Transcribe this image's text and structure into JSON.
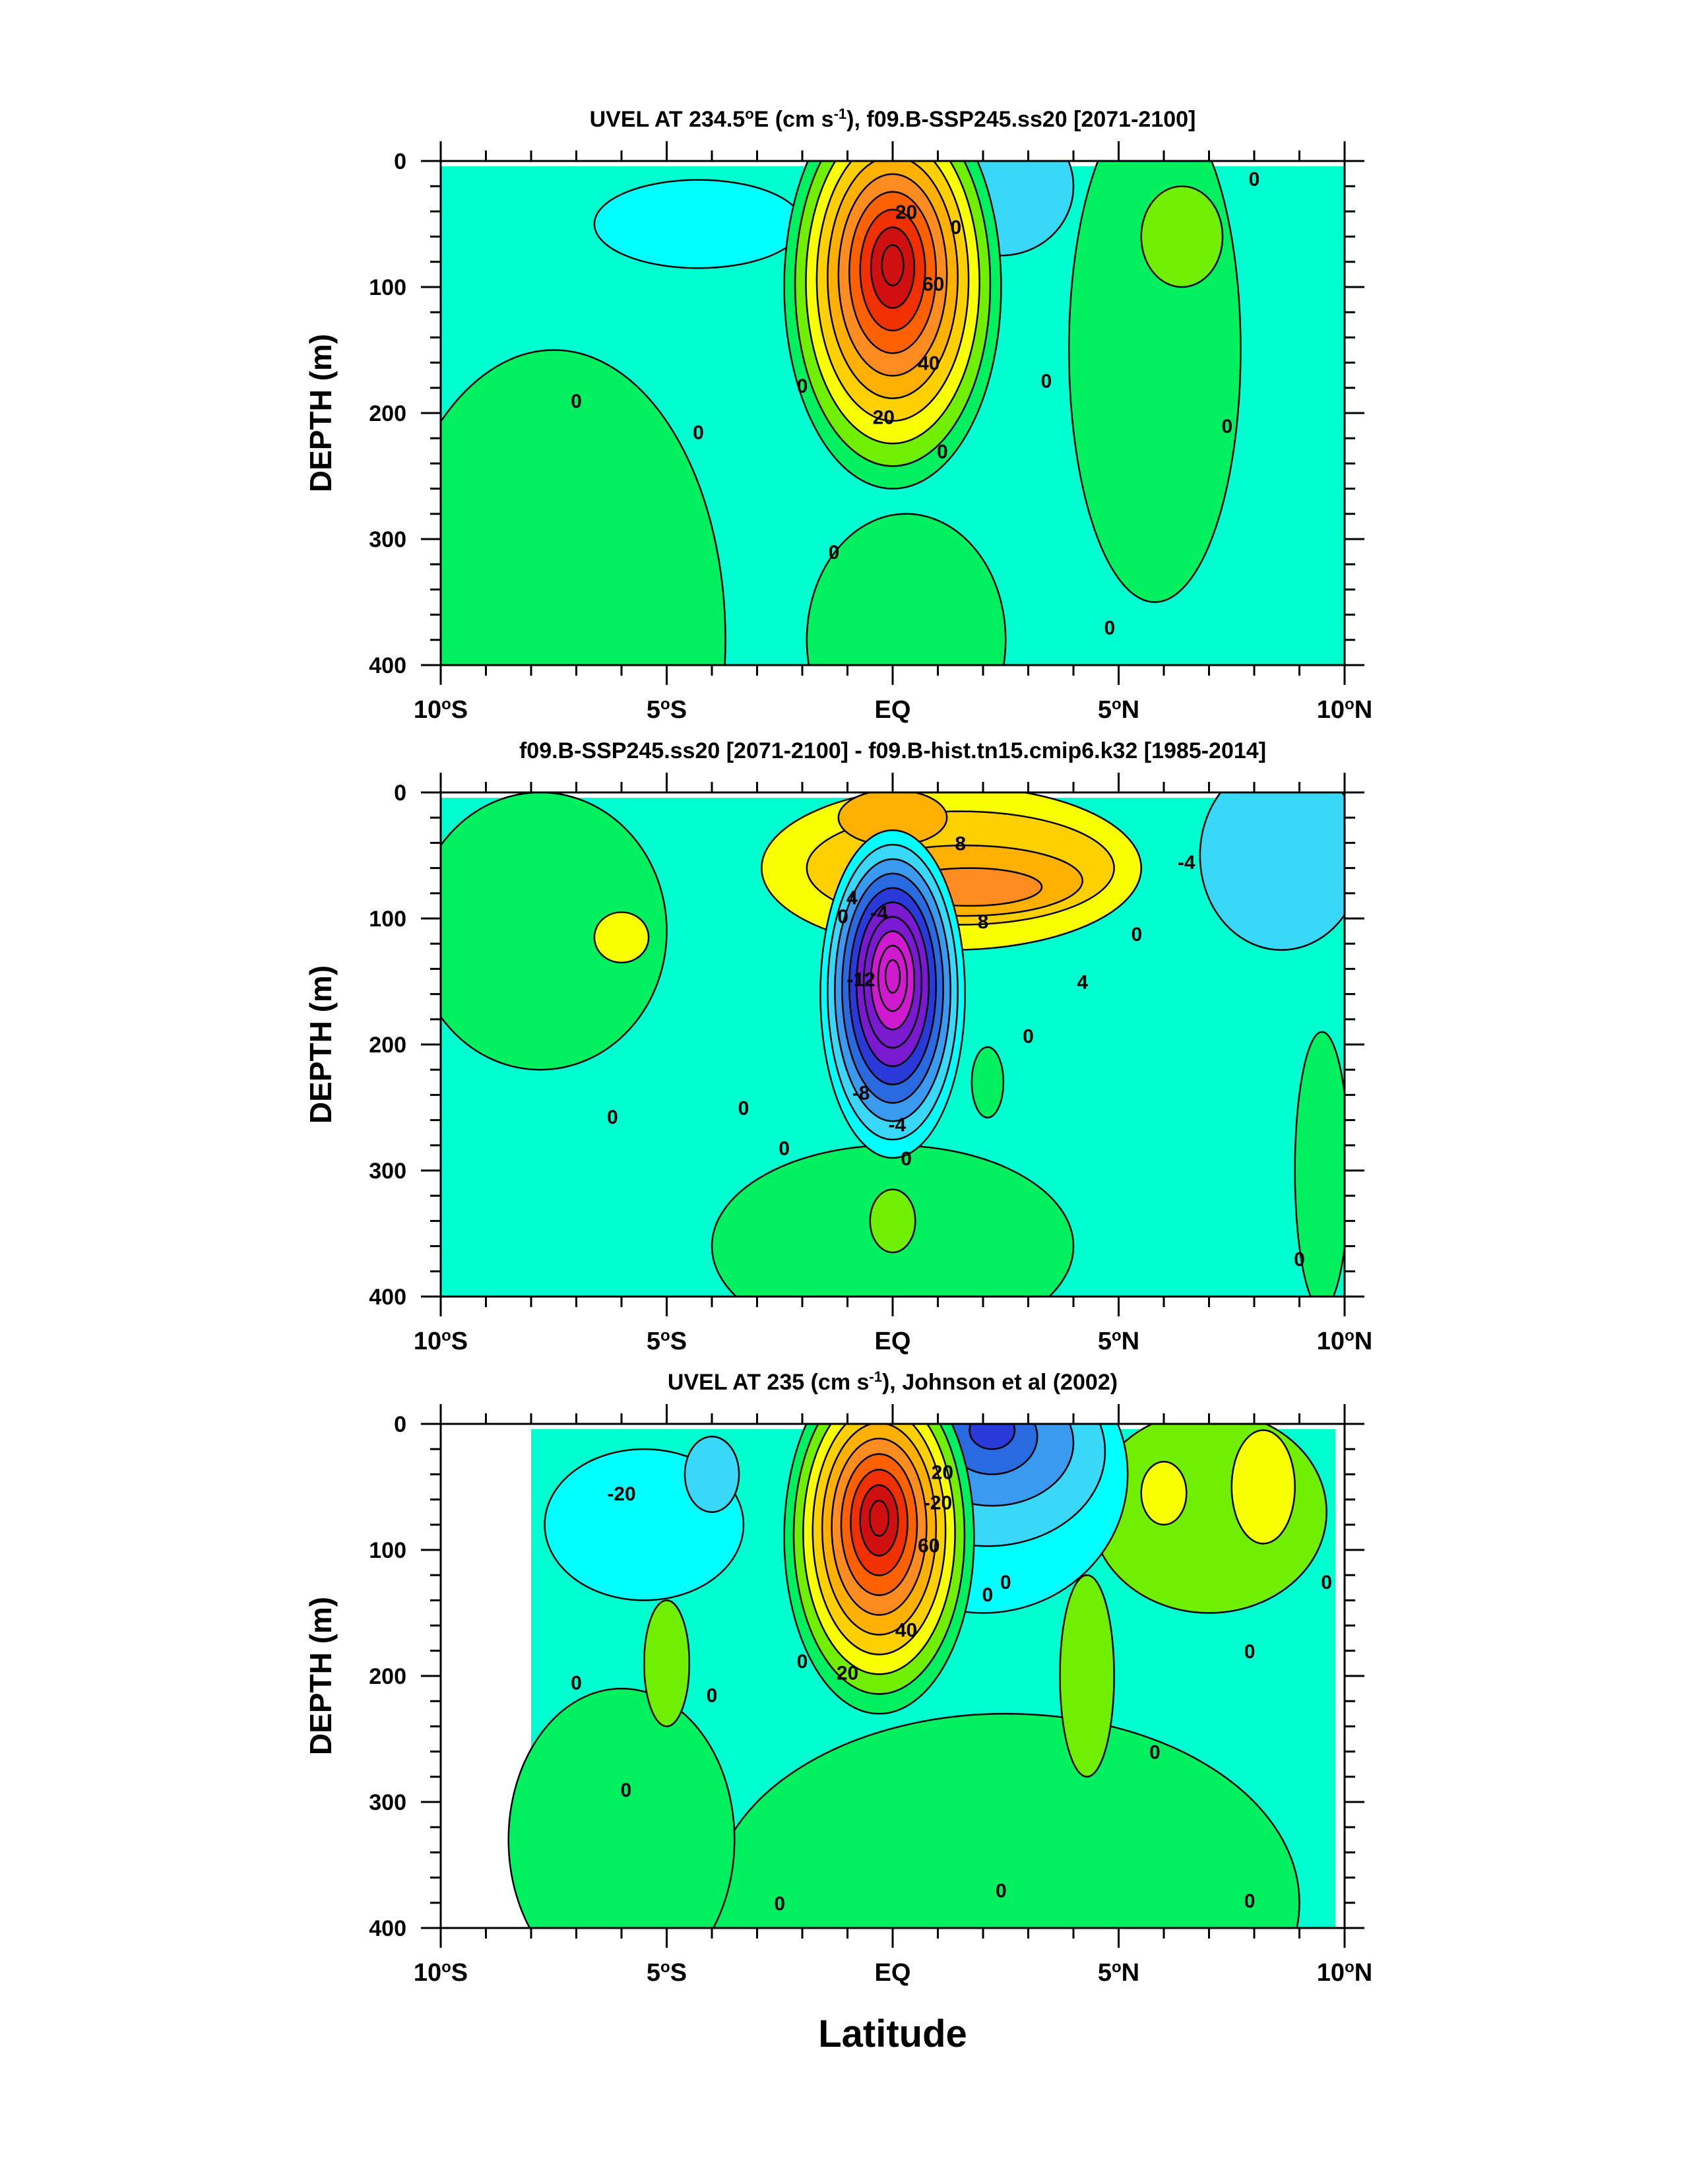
{
  "figure": {
    "xlabel": "Latitude",
    "colors": {
      "level_fills": [
        "#d01ad0",
        "#7a1ad0",
        "#2a3ad8",
        "#2a6ae0",
        "#3a9af0",
        "#3ad8f8",
        "#00ffff",
        "#00ffd0",
        "#00f060",
        "#70f000",
        "#f8ff00",
        "#ffd000",
        "#ffb000",
        "#ff8c20",
        "#ff6000",
        "#f03000",
        "#d01010"
      ],
      "frame": "#000000"
    }
  },
  "chart_data": [
    {
      "type": "contour",
      "title_parts": [
        "UVEL AT 234.5",
        "o",
        "E (cm s",
        "-1",
        "), f09.B-SSP245.ss20 [2071-2100]"
      ],
      "ylabel": "DEPTH (m)",
      "x_ticks": [
        "10",
        "5",
        "EQ",
        "5",
        "10"
      ],
      "x_tick_suffix": [
        "S",
        "S",
        "",
        "N",
        "N"
      ],
      "x_tick_values": [
        -10,
        -5,
        0,
        5,
        10
      ],
      "y_ticks": [
        "0",
        "100",
        "200",
        "300",
        "400"
      ],
      "y_tick_values": [
        0,
        100,
        200,
        300,
        400
      ],
      "xlim": [
        -10,
        10
      ],
      "ylim": [
        400,
        0
      ],
      "background_level": 7,
      "fields": [
        {
          "lat": -7.5,
          "depth": 380,
          "rx": 3.8,
          "ry": 230,
          "level": 8
        },
        {
          "lat": 0.3,
          "depth": 380,
          "rx": 2.2,
          "ry": 100,
          "level": 8
        },
        {
          "lat": 5.8,
          "depth": 150,
          "rx": 1.9,
          "ry": 200,
          "level": 8
        },
        {
          "lat": 6.4,
          "depth": 60,
          "rx": 0.9,
          "ry": 40,
          "level": 9
        },
        {
          "lat": 2.4,
          "depth": 20,
          "rx": 1.6,
          "ry": 55,
          "level": 5
        },
        {
          "lat": -4.3,
          "depth": 50,
          "rx": 2.3,
          "ry": 35,
          "level": 6
        }
      ],
      "jet": {
        "lat": 0.0,
        "depth": 100,
        "rx": 2.4,
        "ry": 160,
        "levels": [
          8,
          9,
          10,
          11,
          12,
          13,
          14,
          15,
          16,
          16
        ]
      },
      "contour_labels": [
        {
          "text": "20",
          "lat": 0.3,
          "depth": 40
        },
        {
          "text": "0",
          "lat": 1.4,
          "depth": 52
        },
        {
          "text": "60",
          "lat": 0.9,
          "depth": 97
        },
        {
          "text": "40",
          "lat": 0.8,
          "depth": 160
        },
        {
          "text": "20",
          "lat": -0.2,
          "depth": 203
        },
        {
          "text": "0",
          "lat": -2.0,
          "depth": 178
        },
        {
          "text": "0",
          "lat": 3.4,
          "depth": 174
        },
        {
          "text": "0",
          "lat": -7.0,
          "depth": 190
        },
        {
          "text": "0",
          "lat": -4.3,
          "depth": 215
        },
        {
          "text": "0",
          "lat": 1.1,
          "depth": 230
        },
        {
          "text": "0",
          "lat": -1.3,
          "depth": 310
        },
        {
          "text": "0",
          "lat": 4.8,
          "depth": 370
        },
        {
          "text": "0",
          "lat": 7.4,
          "depth": 210
        },
        {
          "text": "0",
          "lat": 8.0,
          "depth": 14
        }
      ]
    },
    {
      "type": "contour",
      "title_parts": [
        "f09.B-SSP245.ss20 [2071-2100] - f09.B-hist.tn15.cmip6.k32 [1985-2014]"
      ],
      "ylabel": "DEPTH (m)",
      "x_ticks": [
        "10",
        "5",
        "EQ",
        "5",
        "10"
      ],
      "x_tick_suffix": [
        "S",
        "S",
        "",
        "N",
        "N"
      ],
      "x_tick_values": [
        -10,
        -5,
        0,
        5,
        10
      ],
      "y_ticks": [
        "0",
        "100",
        "200",
        "300",
        "400"
      ],
      "y_tick_values": [
        0,
        100,
        200,
        300,
        400
      ],
      "xlim": [
        -10,
        10
      ],
      "ylim": [
        400,
        0
      ],
      "background_level": 7,
      "fields": [
        {
          "lat": -7.8,
          "depth": 110,
          "rx": 2.8,
          "ry": 110,
          "level": 8
        },
        {
          "lat": -6.0,
          "depth": 115,
          "rx": 0.6,
          "ry": 20,
          "level": 10
        },
        {
          "lat": 0.0,
          "depth": 360,
          "rx": 4.0,
          "ry": 80,
          "level": 8
        },
        {
          "lat": 0.0,
          "depth": 340,
          "rx": 0.5,
          "ry": 25,
          "level": 9
        },
        {
          "lat": 2.1,
          "depth": 230,
          "rx": 0.35,
          "ry": 28,
          "level": 8
        },
        {
          "lat": 8.6,
          "depth": 50,
          "rx": 1.8,
          "ry": 75,
          "level": 5
        },
        {
          "lat": 9.5,
          "depth": 300,
          "rx": 0.6,
          "ry": 110,
          "level": 8
        },
        {
          "lat": 1.3,
          "depth": 60,
          "rx": 4.2,
          "ry": 65,
          "level": 10
        },
        {
          "lat": 1.5,
          "depth": 60,
          "rx": 3.4,
          "ry": 45,
          "level": 11
        },
        {
          "lat": 1.6,
          "depth": 70,
          "rx": 2.6,
          "ry": 28,
          "level": 12
        },
        {
          "lat": 1.7,
          "depth": 75,
          "rx": 1.6,
          "ry": 15,
          "level": 13
        },
        {
          "lat": 0.0,
          "depth": 20,
          "rx": 1.2,
          "ry": 22,
          "level": 12
        }
      ],
      "jet": {
        "lat": 0.0,
        "depth": 160,
        "rx": 1.6,
        "ry": 130,
        "levels": [
          6,
          5,
          4,
          3,
          2,
          1,
          1,
          0,
          0,
          0
        ]
      },
      "contour_labels": [
        {
          "text": "8",
          "lat": 1.5,
          "depth": 40
        },
        {
          "text": "4",
          "lat": -0.9,
          "depth": 83
        },
        {
          "text": "-4",
          "lat": -0.3,
          "depth": 95
        },
        {
          "text": "0",
          "lat": -1.1,
          "depth": 98
        },
        {
          "text": "8",
          "lat": 2.0,
          "depth": 102
        },
        {
          "text": "-12",
          "lat": -0.7,
          "depth": 148
        },
        {
          "text": "4",
          "lat": 4.2,
          "depth": 150
        },
        {
          "text": "-8",
          "lat": -0.7,
          "depth": 238
        },
        {
          "text": "-4",
          "lat": 0.1,
          "depth": 263
        },
        {
          "text": "0",
          "lat": 0.3,
          "depth": 290
        },
        {
          "text": "0",
          "lat": 3.0,
          "depth": 193
        },
        {
          "text": "0",
          "lat": -6.2,
          "depth": 257
        },
        {
          "text": "0",
          "lat": -3.3,
          "depth": 250
        },
        {
          "text": "0",
          "lat": -2.4,
          "depth": 282
        },
        {
          "text": "0",
          "lat": 5.4,
          "depth": 112
        },
        {
          "text": "-4",
          "lat": 6.5,
          "depth": 55
        },
        {
          "text": "0",
          "lat": 9.0,
          "depth": 370
        }
      ]
    },
    {
      "type": "contour",
      "title_parts": [
        "UVEL AT 235 (cm s",
        "-1",
        "), Johnson et al (2002)"
      ],
      "ylabel": "DEPTH (m)",
      "x_ticks": [
        "10",
        "5",
        "EQ",
        "5",
        "10"
      ],
      "x_tick_suffix": [
        "S",
        "S",
        "",
        "N",
        "N"
      ],
      "x_tick_values": [
        -10,
        -5,
        0,
        5,
        10
      ],
      "y_ticks": [
        "0",
        "100",
        "200",
        "300",
        "400"
      ],
      "y_tick_values": [
        0,
        100,
        200,
        300,
        400
      ],
      "xlim": [
        -10,
        10
      ],
      "ylim": [
        400,
        0
      ],
      "data_lat_range": [
        -8.0,
        9.8
      ],
      "background_level": 7,
      "fields": [
        {
          "lat": -5.5,
          "depth": 80,
          "rx": 2.2,
          "ry": 60,
          "level": 6
        },
        {
          "lat": -4.0,
          "depth": 40,
          "rx": 0.6,
          "ry": 30,
          "level": 5
        },
        {
          "lat": 2.5,
          "depth": 380,
          "rx": 6.5,
          "ry": 150,
          "level": 8
        },
        {
          "lat": -6.0,
          "depth": 330,
          "rx": 2.5,
          "ry": 120,
          "level": 8
        },
        {
          "lat": -5.0,
          "depth": 190,
          "rx": 0.5,
          "ry": 50,
          "level": 9
        },
        {
          "lat": 4.3,
          "depth": 200,
          "rx": 0.6,
          "ry": 80,
          "level": 9
        },
        {
          "lat": 7.0,
          "depth": 70,
          "rx": 2.6,
          "ry": 80,
          "level": 9
        },
        {
          "lat": 8.2,
          "depth": 50,
          "rx": 0.7,
          "ry": 45,
          "level": 10
        },
        {
          "lat": 6.0,
          "depth": 55,
          "rx": 0.5,
          "ry": 25,
          "level": 10
        },
        {
          "lat": 2.0,
          "depth": 40,
          "rx": 3.2,
          "ry": 110,
          "level": 6
        },
        {
          "lat": 2.1,
          "depth": 22,
          "rx": 2.6,
          "ry": 75,
          "level": 5
        },
        {
          "lat": 2.2,
          "depth": 15,
          "rx": 1.8,
          "ry": 50,
          "level": 4
        },
        {
          "lat": 2.2,
          "depth": 10,
          "rx": 1.0,
          "ry": 30,
          "level": 3
        },
        {
          "lat": 2.2,
          "depth": 5,
          "rx": 0.5,
          "ry": 15,
          "level": 2
        }
      ],
      "jet": {
        "lat": -0.3,
        "depth": 90,
        "rx": 2.1,
        "ry": 140,
        "levels": [
          8,
          9,
          10,
          11,
          12,
          13,
          14,
          15,
          16,
          16
        ]
      },
      "contour_labels": [
        {
          "text": "-20",
          "lat": -6.0,
          "depth": 55
        },
        {
          "text": "20",
          "lat": 1.1,
          "depth": 38
        },
        {
          "text": "-20",
          "lat": 1.0,
          "depth": 62
        },
        {
          "text": "60",
          "lat": 0.8,
          "depth": 96
        },
        {
          "text": "0",
          "lat": 2.5,
          "depth": 125
        },
        {
          "text": "0",
          "lat": 2.1,
          "depth": 135
        },
        {
          "text": "40",
          "lat": 0.3,
          "depth": 163
        },
        {
          "text": "20",
          "lat": -1.0,
          "depth": 197
        },
        {
          "text": "0",
          "lat": -2.0,
          "depth": 188
        },
        {
          "text": "0",
          "lat": -7.0,
          "depth": 205
        },
        {
          "text": "0",
          "lat": -4.0,
          "depth": 215
        },
        {
          "text": "0",
          "lat": -5.9,
          "depth": 290
        },
        {
          "text": "0",
          "lat": 5.8,
          "depth": 260
        },
        {
          "text": "0",
          "lat": 7.9,
          "depth": 180
        },
        {
          "text": "0",
          "lat": 9.6,
          "depth": 125
        },
        {
          "text": "0",
          "lat": 2.4,
          "depth": 370
        },
        {
          "text": "0",
          "lat": -2.5,
          "depth": 380
        },
        {
          "text": "0",
          "lat": 7.9,
          "depth": 378
        }
      ]
    }
  ]
}
